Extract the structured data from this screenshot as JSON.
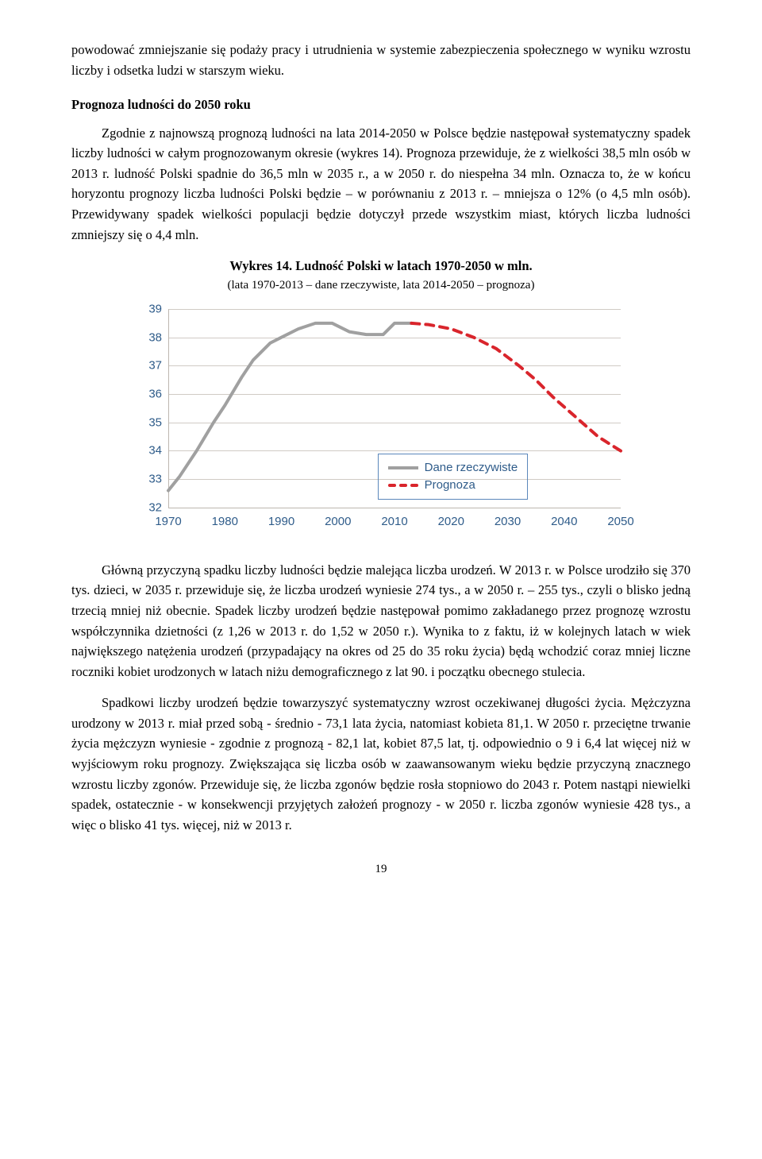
{
  "para1": "powodować zmniejszanie się podaży pracy i utrudnienia w systemie zabezpieczenia społecznego w wyniku wzrostu liczby i odsetka ludzi w starszym wieku.",
  "heading1": "Prognoza ludności do 2050 roku",
  "para2": "Zgodnie z najnowszą prognozą ludności na lata 2014-2050 w Polsce będzie następował systematyczny spadek liczby ludności w całym prognozowanym okresie (wykres 14). Prognoza przewiduje, że z wielkości 38,5 mln osób w 2013 r. ludność Polski spadnie do 36,5 mln w 2035 r., a w 2050 r. do niespełna 34 mln. Oznacza to, że w końcu horyzontu prognozy liczba ludności Polski będzie – w porównaniu z 2013 r. – mniejsza o 12% (o 4,5 mln osób). Przewidywany spadek wielkości populacji będzie dotyczył przede wszystkim miast, których liczba ludności zmniejszy się o 4,4 mln.",
  "chart": {
    "title": "Wykres 14. Ludność Polski w latach 1970-2050 w mln.",
    "subtitle": "(lata 1970-2013 – dane rzeczywiste, lata 2014-2050 – prognoza)",
    "yticks": [
      32,
      33,
      34,
      35,
      36,
      37,
      38,
      39
    ],
    "ylim_min": 32,
    "ylim_max": 39,
    "xticks": [
      1970,
      1980,
      1990,
      2000,
      2010,
      2020,
      2030,
      2040,
      2050
    ],
    "xlim_min": 1970,
    "xlim_max": 2050,
    "grid_color": "#d0cbc5",
    "axis_color": "#bdb7b0",
    "bg_color": "#ffffff",
    "real_color": "#a0a0a0",
    "prog_color": "#d9252c",
    "legend_border": "#5b87bb",
    "tick_color": "#2f5c8a",
    "legend_real": "Dane rzeczywiste",
    "legend_prog": "Prognoza",
    "series_real": [
      [
        1970,
        32.6
      ],
      [
        1972,
        33.1
      ],
      [
        1975,
        34.0
      ],
      [
        1978,
        35.0
      ],
      [
        1980,
        35.6
      ],
      [
        1983,
        36.6
      ],
      [
        1985,
        37.2
      ],
      [
        1988,
        37.8
      ],
      [
        1990,
        38.0
      ],
      [
        1993,
        38.3
      ],
      [
        1996,
        38.5
      ],
      [
        1999,
        38.5
      ],
      [
        2002,
        38.2
      ],
      [
        2005,
        38.1
      ],
      [
        2008,
        38.1
      ],
      [
        2010,
        38.5
      ],
      [
        2013,
        38.5
      ]
    ],
    "series_prog": [
      [
        2013,
        38.5
      ],
      [
        2016,
        38.45
      ],
      [
        2020,
        38.3
      ],
      [
        2024,
        38.0
      ],
      [
        2028,
        37.6
      ],
      [
        2032,
        37.0
      ],
      [
        2035,
        36.5
      ],
      [
        2038,
        35.9
      ],
      [
        2042,
        35.2
      ],
      [
        2046,
        34.5
      ],
      [
        2050,
        34.0
      ]
    ],
    "line_width_real": 4,
    "line_width_prog": 4,
    "dash_prog": "10 8"
  },
  "para3": "Główną przyczyną spadku liczby ludności będzie malejąca liczba urodzeń. W 2013 r. w Polsce urodziło się 370 tys. dzieci, w 2035 r. przewiduje się, że liczba urodzeń wyniesie 274 tys., a w 2050 r. – 255 tys., czyli o blisko jedną trzecią mniej niż obecnie. Spadek liczby urodzeń będzie następował pomimo zakładanego przez prognozę wzrostu współczynnika dzietności (z 1,26 w 2013 r. do 1,52 w 2050 r.). Wynika to z faktu, iż w kolejnych latach w wiek największego natężenia urodzeń (przypadający na okres od 25 do 35 roku życia) będą wchodzić coraz mniej liczne roczniki kobiet urodzonych w latach niżu demograficznego z lat 90. i początku obecnego stulecia.",
  "para4": "Spadkowi liczby urodzeń będzie towarzyszyć systematyczny wzrost oczekiwanej długości życia. Mężczyzna urodzony w 2013 r. miał przed sobą - średnio - 73,1 lata życia, natomiast kobieta 81,1. W 2050 r. przeciętne trwanie życia mężczyzn wyniesie - zgodnie z prognozą - 82,1 lat, kobiet 87,5 lat, tj. odpowiednio o 9 i 6,4 lat więcej niż w wyjściowym roku prognozy. Zwiększająca się liczba osób w zaawansowanym wieku będzie przyczyną znacznego wzrostu liczby zgonów. Przewiduje się, że liczba zgonów będzie rosła stopniowo do 2043 r. Potem nastąpi niewielki spadek, ostatecznie - w konsekwencji przyjętych założeń prognozy - w 2050 r. liczba zgonów wyniesie 428 tys., a więc o blisko 41 tys. więcej, niż w 2013 r.",
  "page_number": "19"
}
